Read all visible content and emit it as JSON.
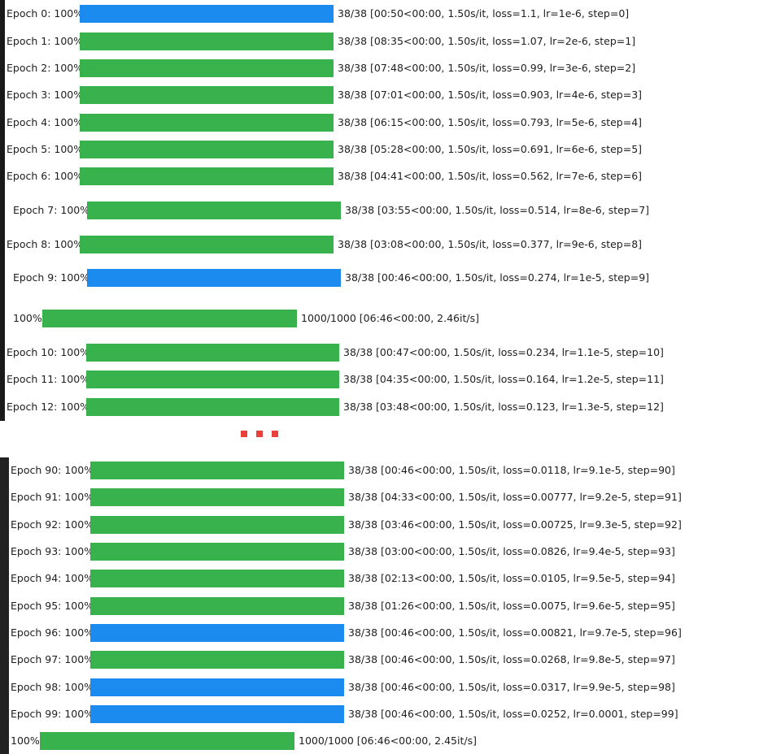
{
  "top_section": [
    {
      "label": "Epoch 0: 100%",
      "stats": "38/38 [00:50<00:00, 1.50s/it, loss=1.1, lr=1e-6, step=0]",
      "color": "blue",
      "progress": 1.0
    },
    {
      "label": "Epoch 1: 100%",
      "stats": "38/38 [08:35<00:00, 1.50s/it, loss=1.07, lr=2e-6, step=1]",
      "color": "green",
      "progress": 1.0
    },
    {
      "label": "Epoch 2: 100%",
      "stats": "38/38 [07:48<00:00, 1.50s/it, loss=0.99, lr=3e-6, step=2]",
      "color": "green",
      "progress": 1.0
    },
    {
      "label": "Epoch 3: 100%",
      "stats": "38/38 [07:01<00:00, 1.50s/it, loss=0.903, lr=4e-6, step=3]",
      "color": "green",
      "progress": 1.0
    },
    {
      "label": "Epoch 4: 100%",
      "stats": "38/38 [06:15<00:00, 1.50s/it, loss=0.793, lr=5e-6, step=4]",
      "color": "green",
      "progress": 1.0
    },
    {
      "label": "Epoch 5: 100%",
      "stats": "38/38 [05:28<00:00, 1.50s/it, loss=0.691, lr=6e-6, step=5]",
      "color": "green",
      "progress": 1.0
    },
    {
      "label": "Epoch 6: 100%",
      "stats": "38/38 [04:41<00:00, 1.50s/it, loss=0.562, lr=7e-6, step=6]",
      "color": "green",
      "progress": 1.0
    },
    {
      "label": "Epoch 7: 100%",
      "stats": "38/38 [03:55<00:00, 1.50s/it, loss=0.514, lr=8e-6, step=7]",
      "color": "green",
      "progress": 1.0
    },
    {
      "label": "Epoch 8: 100%",
      "stats": "38/38 [03:08<00:00, 1.50s/it, loss=0.377, lr=9e-6, step=8]",
      "color": "green",
      "progress": 1.0
    },
    {
      "label": "Epoch 9: 100%",
      "stats": "38/38 [00:46<00:00, 1.50s/it, loss=0.274, lr=1e-5, step=9]",
      "color": "blue",
      "progress": 1.0
    },
    {
      "label": "100%",
      "stats": "1000/1000 [06:46<00:00, 2.46it/s]",
      "color": "green",
      "progress": 1.0
    },
    {
      "label": "Epoch 10: 100%",
      "stats": "38/38 [00:47<00:00, 1.50s/it, loss=0.234, lr=1.1e-5, step=10]",
      "color": "green",
      "progress": 1.0
    },
    {
      "label": "Epoch 11: 100%",
      "stats": "38/38 [04:35<00:00, 1.50s/it, loss=0.164, lr=1.2e-5, step=11]",
      "color": "green",
      "progress": 1.0
    },
    {
      "label": "Epoch 12: 100%",
      "stats": "38/38 [03:48<00:00, 1.50s/it, loss=0.123, lr=1.3e-5, step=12]",
      "color": "green",
      "progress": 1.0
    }
  ],
  "bottom_section": [
    {
      "label": "Epoch 90: 100%",
      "stats": "38/38 [00:46<00:00, 1.50s/it, loss=0.0118, lr=9.1e-5, step=90]",
      "color": "green",
      "progress": 1.0
    },
    {
      "label": "Epoch 91: 100%",
      "stats": "38/38 [04:33<00:00, 1.50s/it, loss=0.00777, lr=9.2e-5, step=91]",
      "color": "green",
      "progress": 1.0
    },
    {
      "label": "Epoch 92: 100%",
      "stats": "38/38 [03:46<00:00, 1.50s/it, loss=0.00725, lr=9.3e-5, step=92]",
      "color": "green",
      "progress": 1.0
    },
    {
      "label": "Epoch 93: 100%",
      "stats": "38/38 [03:00<00:00, 1.50s/it, loss=0.0826, lr=9.4e-5, step=93]",
      "color": "green",
      "progress": 1.0
    },
    {
      "label": "Epoch 94: 100%",
      "stats": "38/38 [02:13<00:00, 1.50s/it, loss=0.0105, lr=9.5e-5, step=94]",
      "color": "green",
      "progress": 1.0
    },
    {
      "label": "Epoch 95: 100%",
      "stats": "38/38 [01:26<00:00, 1.50s/it, loss=0.0075, lr=9.6e-5, step=95]",
      "color": "green",
      "progress": 1.0
    },
    {
      "label": "Epoch 96: 100%",
      "stats": "38/38 [00:46<00:00, 1.50s/it, loss=0.00821, lr=9.7e-5, step=96]",
      "color": "blue",
      "progress": 1.0
    },
    {
      "label": "Epoch 97: 100%",
      "stats": "38/38 [00:46<00:00, 1.50s/it, loss=0.0268, lr=9.8e-5, step=97]",
      "color": "green",
      "progress": 1.0
    },
    {
      "label": "Epoch 98: 100%",
      "stats": "38/38 [00:46<00:00, 1.50s/it, loss=0.0317, lr=9.9e-5, step=98]",
      "color": "blue",
      "progress": 1.0
    },
    {
      "label": "Epoch 99: 100%",
      "stats": "38/38 [00:46<00:00, 1.50s/it, loss=0.0252, lr=0.0001, step=99]",
      "color": "blue",
      "progress": 1.0
    },
    {
      "label": "100%",
      "stats": "1000/1000 [06:46<00:00, 2.45it/s]",
      "color": "green",
      "progress": 1.0
    }
  ],
  "colors": {
    "green": "#37b24d",
    "blue": "#1c8bf0",
    "ellipsis": "#e8403a",
    "edge": "#1a1a1a"
  }
}
